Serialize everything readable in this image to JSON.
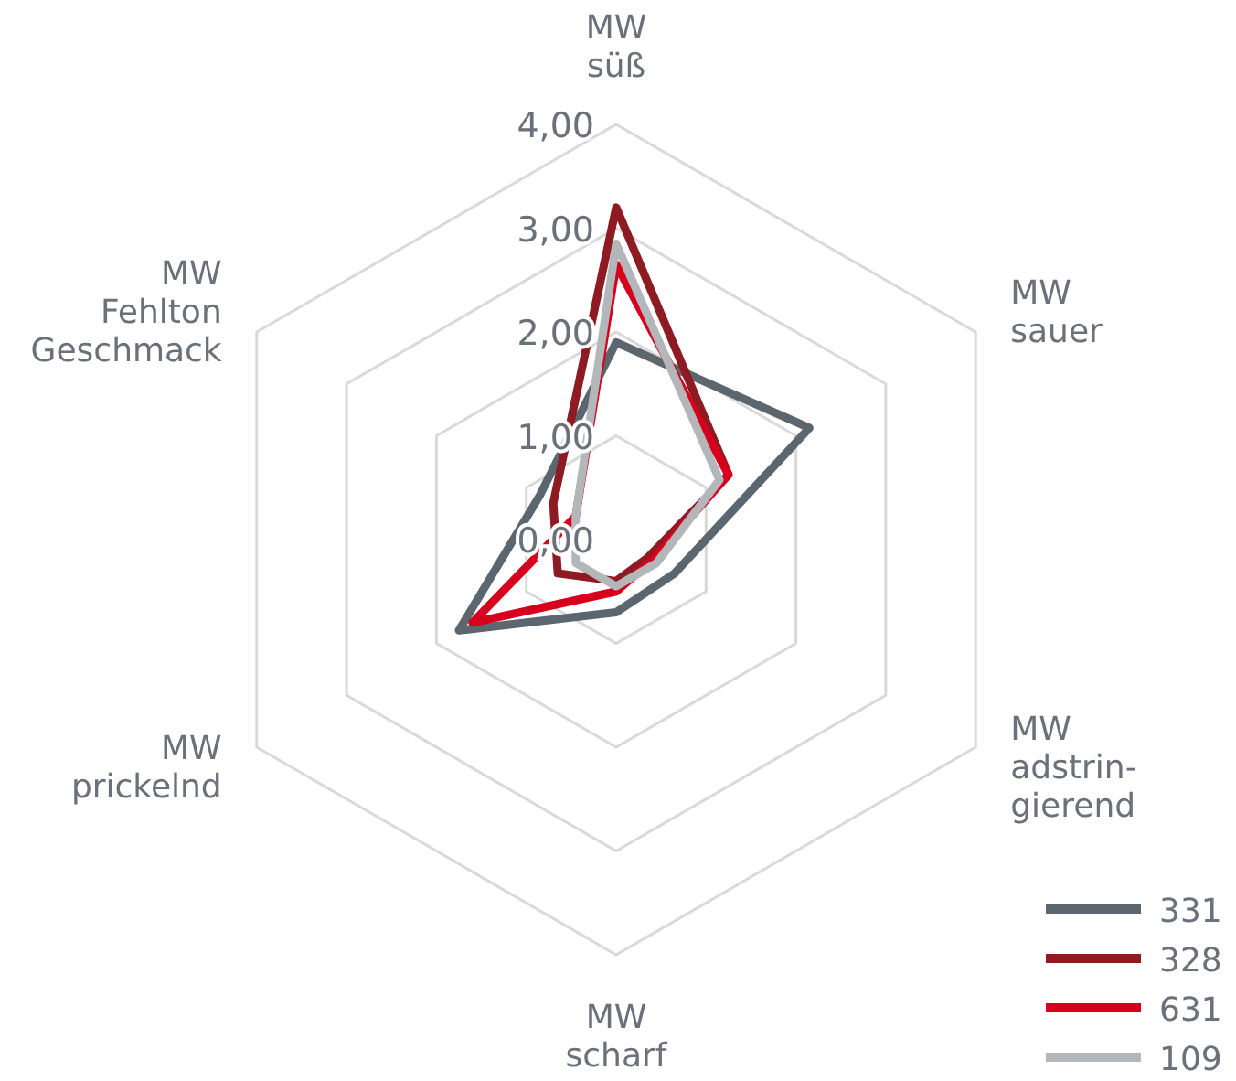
{
  "chart_data": {
    "type": "radar",
    "categories": [
      "MW\nsüß",
      "MW\nsauer",
      "MW\nadstrin-\ngierend",
      "MW\nscharf",
      "MW\nprickelnd",
      "MW\nFehlton\nGeschmack"
    ],
    "ylim": [
      0,
      4
    ],
    "yticks": [
      {
        "value": 0,
        "label": "0,00"
      },
      {
        "value": 1,
        "label": "1,00"
      },
      {
        "value": 2,
        "label": "2,00"
      },
      {
        "value": 3,
        "label": "3,00"
      },
      {
        "value": 4,
        "label": "4,00"
      }
    ],
    "grid": true,
    "legend": "bottom right",
    "series": [
      {
        "name": "331",
        "color": "#5b666e",
        "values": [
          1.9,
          2.15,
          0.65,
          0.7,
          1.75,
          0.85
        ]
      },
      {
        "name": "328",
        "color": "#8e1a22",
        "values": [
          3.2,
          1.25,
          0.35,
          0.4,
          0.65,
          0.7
        ]
      },
      {
        "name": "631",
        "color": "#d6001c",
        "values": [
          2.65,
          1.25,
          0.4,
          0.5,
          1.6,
          0.45
        ]
      },
      {
        "name": "109",
        "color": "#b3b7ba",
        "values": [
          2.85,
          1.15,
          0.45,
          0.45,
          0.45,
          0.45
        ]
      }
    ]
  }
}
